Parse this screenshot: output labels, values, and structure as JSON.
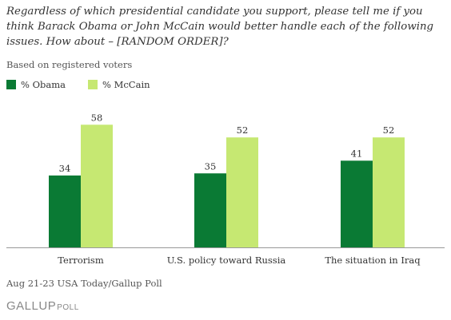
{
  "question": "Regardless of which presidential candidate you support, please tell me if you think Barack Obama or John McCain would better handle each of the following issues.  How about – [RANDOM ORDER]?",
  "subtitle": "Based on registered voters",
  "footnote": "Aug 21-23 USA Today/Gallup Poll",
  "brand": {
    "main": "GALLUP",
    "sub": "POLL"
  },
  "colors": {
    "obama": "#0a7a34",
    "mccain": "#c6e872",
    "axis": "#999999",
    "label": "#333333"
  },
  "chart_data": {
    "type": "bar",
    "categories": [
      "Terrorism",
      "U.S. policy toward Russia",
      "The situation in Iraq"
    ],
    "series": [
      {
        "name": "% Obama",
        "values": [
          34,
          35,
          41
        ]
      },
      {
        "name": "% McCain",
        "values": [
          58,
          52,
          52
        ]
      }
    ],
    "ylim": [
      0,
      100
    ],
    "grid": false,
    "legend_position": "top-left",
    "data_labels": true
  }
}
